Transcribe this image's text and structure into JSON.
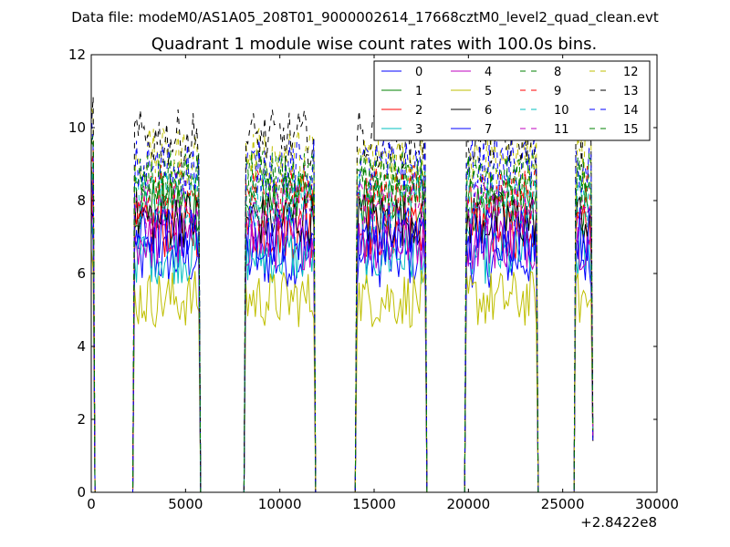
{
  "suptitle": "Data file: modeM0/AS1A05_208T01_9000002614_17668cztM0_level2_quad_clean.evt",
  "chart_data": {
    "type": "line",
    "title": "Quadrant 1 module wise count rates with 100.0s bins.",
    "xlabel": "",
    "ylabel": "",
    "xlim": [
      0,
      30000
    ],
    "ylim": [
      0,
      12
    ],
    "x_offset_label": "+2.8422e8",
    "xticks": [
      0,
      5000,
      10000,
      15000,
      20000,
      25000,
      30000
    ],
    "xtick_labels": [
      "0",
      "5000",
      "10000",
      "15000",
      "20000",
      "25000",
      "30000"
    ],
    "yticks": [
      0,
      2,
      4,
      6,
      8,
      10,
      12
    ],
    "ytick_labels": [
      "0",
      "2",
      "4",
      "6",
      "8",
      "10",
      "12"
    ],
    "bin_width_s": 100,
    "segments": [
      {
        "start": 0,
        "end": 100
      },
      {
        "start": 2300,
        "end": 5700
      },
      {
        "start": 8200,
        "end": 11800
      },
      {
        "start": 14100,
        "end": 17700
      },
      {
        "start": 19900,
        "end": 23600
      },
      {
        "start": 25700,
        "end": 26500
      }
    ],
    "legend_location": "upper right",
    "legend_columns": 4,
    "series": [
      {
        "name": "0",
        "color": "#0000ff",
        "dash": "solid",
        "level": 6.4
      },
      {
        "name": "1",
        "color": "#008000",
        "dash": "solid",
        "level": 7.9
      },
      {
        "name": "2",
        "color": "#ff0000",
        "dash": "solid",
        "level": 7.2
      },
      {
        "name": "3",
        "color": "#00bfbf",
        "dash": "solid",
        "level": 6.5
      },
      {
        "name": "4",
        "color": "#bf00bf",
        "dash": "solid",
        "level": 6.9
      },
      {
        "name": "5",
        "color": "#bfbf00",
        "dash": "solid",
        "level": 5.3
      },
      {
        "name": "6",
        "color": "#000000",
        "dash": "solid",
        "level": 7.5
      },
      {
        "name": "7",
        "color": "#0000ff",
        "dash": "solid",
        "level": 7.1
      },
      {
        "name": "8",
        "color": "#008000",
        "dash": "dashed",
        "level": 8.6
      },
      {
        "name": "9",
        "color": "#ff0000",
        "dash": "dashed",
        "level": 8.2
      },
      {
        "name": "10",
        "color": "#00bfbf",
        "dash": "dashed",
        "level": 8.0
      },
      {
        "name": "11",
        "color": "#bf00bf",
        "dash": "dashed",
        "level": 7.8
      },
      {
        "name": "12",
        "color": "#bfbf00",
        "dash": "dashed",
        "level": 9.2
      },
      {
        "name": "13",
        "color": "#000000",
        "dash": "dashed",
        "level": 9.7
      },
      {
        "name": "14",
        "color": "#0000ff",
        "dash": "dashed",
        "level": 8.9
      },
      {
        "name": "15",
        "color": "#008000",
        "dash": "dashed",
        "level": 8.5
      }
    ]
  }
}
